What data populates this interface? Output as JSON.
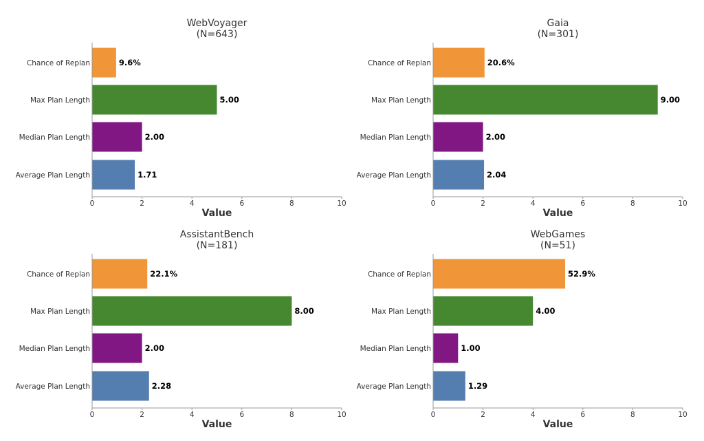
{
  "chart_data": [
    {
      "type": "bar",
      "orientation": "horizontal",
      "title": "WebVoyager",
      "subtitle": "(N=643)",
      "xlabel": "Value",
      "xlim": [
        0,
        10
      ],
      "xticks": [
        "0",
        "2",
        "4",
        "6",
        "8",
        "10"
      ],
      "bars": [
        {
          "category": "Chance of Replan",
          "value": 0.96,
          "label": "9.6%"
        },
        {
          "category": "Max Plan Length",
          "value": 5.0,
          "label": "5.00"
        },
        {
          "category": "Median Plan Length",
          "value": 2.0,
          "label": "2.00"
        },
        {
          "category": "Average Plan Length",
          "value": 1.71,
          "label": "1.71"
        }
      ]
    },
    {
      "type": "bar",
      "orientation": "horizontal",
      "title": "Gaia",
      "subtitle": "(N=301)",
      "xlabel": "Value",
      "xlim": [
        0,
        10
      ],
      "xticks": [
        "0",
        "2",
        "4",
        "6",
        "8",
        "10"
      ],
      "bars": [
        {
          "category": "Chance of Replan",
          "value": 2.06,
          "label": "20.6%"
        },
        {
          "category": "Max Plan Length",
          "value": 9.0,
          "label": "9.00"
        },
        {
          "category": "Median Plan Length",
          "value": 2.0,
          "label": "2.00"
        },
        {
          "category": "Average Plan Length",
          "value": 2.04,
          "label": "2.04"
        }
      ]
    },
    {
      "type": "bar",
      "orientation": "horizontal",
      "title": "AssistantBench",
      "subtitle": "(N=181)",
      "xlabel": "Value",
      "xlim": [
        0,
        10
      ],
      "xticks": [
        "0",
        "2",
        "4",
        "6",
        "8",
        "10"
      ],
      "bars": [
        {
          "category": "Chance of Replan",
          "value": 2.21,
          "label": "22.1%"
        },
        {
          "category": "Max Plan Length",
          "value": 8.0,
          "label": "8.00"
        },
        {
          "category": "Median Plan Length",
          "value": 2.0,
          "label": "2.00"
        },
        {
          "category": "Average Plan Length",
          "value": 2.28,
          "label": "2.28"
        }
      ]
    },
    {
      "type": "bar",
      "orientation": "horizontal",
      "title": "WebGames",
      "subtitle": "(N=51)",
      "xlabel": "Value",
      "xlim": [
        0,
        10
      ],
      "xticks": [
        "0",
        "2",
        "4",
        "6",
        "8",
        "10"
      ],
      "bars": [
        {
          "category": "Chance of Replan",
          "value": 5.29,
          "label": "52.9%"
        },
        {
          "category": "Max Plan Length",
          "value": 4.0,
          "label": "4.00"
        },
        {
          "category": "Median Plan Length",
          "value": 1.0,
          "label": "1.00"
        },
        {
          "category": "Average Plan Length",
          "value": 1.29,
          "label": "1.29"
        }
      ]
    }
  ],
  "colors": {
    "Chance of Replan": "#F09538",
    "Max Plan Length": "#468830",
    "Median Plan Length": "#801783",
    "Average Plan Length": "#547EB0",
    "axis": "#999999",
    "text": "#333333"
  }
}
